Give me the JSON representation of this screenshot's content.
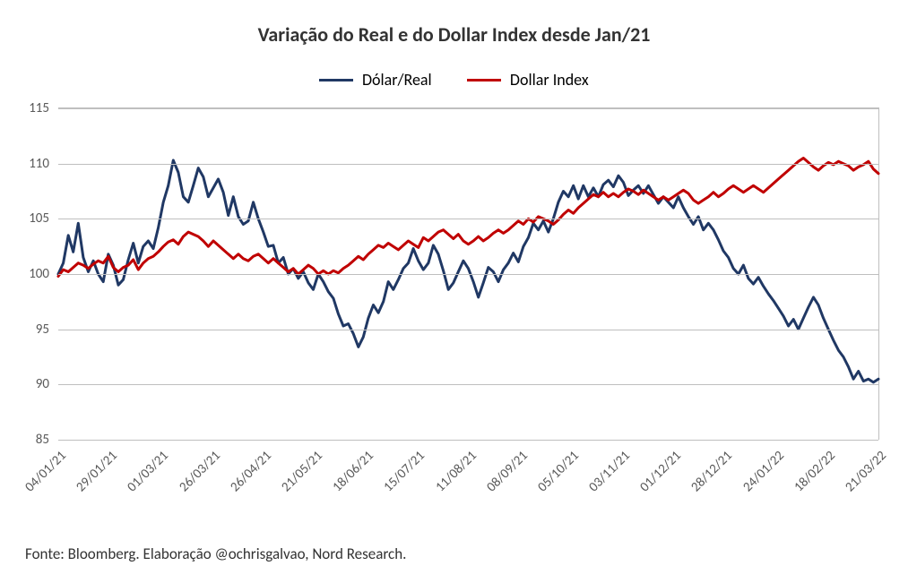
{
  "chart": {
    "type": "line",
    "title": "Variação do Real e do Dollar Index desde Jan/21",
    "title_fontsize": 22,
    "title_color": "#333333",
    "background_color": "#ffffff",
    "grid_color": "#bfbfbf",
    "plot_border_color": "#bfbfbf",
    "source": "Fonte: Bloomberg. Elaboração @ochrisgalvao, Nord Research.",
    "source_fontsize": 17,
    "ylim": [
      85,
      115
    ],
    "ytick_step": 5,
    "y_ticks": [
      85,
      90,
      95,
      100,
      105,
      110,
      115
    ],
    "tick_fontsize": 15,
    "tick_color": "#595959",
    "legend": {
      "position": "top-center",
      "fontsize": 18,
      "items": [
        {
          "label": "Dólar/Real",
          "color": "#203864"
        },
        {
          "label": "Dollar Index",
          "color": "#c00000"
        }
      ]
    },
    "line_width": 3,
    "x_labels": [
      "04/01/21",
      "29/01/21",
      "01/03/21",
      "26/03/21",
      "26/04/21",
      "21/05/21",
      "18/06/21",
      "15/07/21",
      "11/08/21",
      "08/09/21",
      "05/10/21",
      "03/11/21",
      "01/12/21",
      "28/12/21",
      "24/01/22",
      "18/02/22",
      "21/03/22"
    ],
    "series": [
      {
        "name": "Dólar/Real",
        "color": "#203864",
        "values": [
          100.0,
          101.0,
          103.5,
          102.0,
          104.6,
          101.5,
          100.2,
          101.2,
          100.0,
          99.3,
          101.8,
          100.8,
          99.0,
          99.5,
          101.3,
          102.8,
          101.0,
          102.5,
          103.0,
          102.3,
          104.2,
          106.5,
          108.0,
          110.3,
          109.2,
          107.0,
          106.5,
          108.0,
          109.6,
          108.8,
          107.0,
          107.8,
          108.6,
          107.4,
          105.3,
          107.0,
          105.2,
          104.5,
          104.8,
          106.5,
          105.0,
          103.8,
          102.5,
          102.6,
          101.0,
          101.5,
          100.0,
          100.5,
          99.6,
          100.2,
          99.2,
          98.6,
          100.0,
          99.3,
          98.4,
          97.8,
          96.4,
          95.3,
          95.5,
          94.6,
          93.4,
          94.3,
          96.0,
          97.2,
          96.5,
          97.5,
          99.3,
          98.6,
          99.5,
          100.5,
          101.0,
          102.3,
          101.2,
          100.4,
          101.0,
          102.6,
          101.8,
          100.3,
          98.6,
          99.2,
          100.2,
          101.2,
          100.5,
          99.3,
          97.9,
          99.2,
          100.6,
          100.2,
          99.3,
          100.4,
          101.0,
          101.9,
          101.1,
          102.5,
          103.3,
          104.6,
          104.0,
          104.8,
          103.8,
          105.0,
          106.5,
          107.5,
          107.0,
          108.0,
          106.8,
          108.0,
          107.0,
          107.8,
          107.0,
          108.1,
          108.5,
          107.9,
          108.9,
          108.3,
          107.1,
          107.6,
          108.0,
          107.3,
          108.0,
          107.2,
          106.4,
          107.0,
          106.5,
          106.0,
          107.0,
          106.0,
          105.2,
          104.5,
          105.2,
          104.0,
          104.6,
          104.0,
          103.1,
          102.1,
          101.5,
          100.5,
          100.0,
          100.8,
          99.6,
          99.1,
          99.7,
          98.9,
          98.2,
          97.6,
          96.9,
          96.2,
          95.3,
          95.9,
          95.0,
          96.0,
          97.0,
          97.9,
          97.2,
          96.0,
          95.0,
          94.0,
          93.1,
          92.5,
          91.6,
          90.5,
          91.2,
          90.3,
          90.5,
          90.2,
          90.5
        ]
      },
      {
        "name": "Dollar Index",
        "color": "#c00000",
        "values": [
          99.8,
          100.4,
          100.2,
          100.6,
          101.0,
          100.8,
          100.5,
          100.9,
          101.2,
          101.0,
          101.6,
          100.6,
          100.2,
          100.6,
          100.8,
          101.3,
          100.4,
          101.0,
          101.4,
          101.6,
          102.0,
          102.5,
          102.9,
          103.1,
          102.7,
          103.4,
          103.8,
          103.6,
          103.4,
          103.0,
          102.5,
          103.0,
          102.6,
          102.2,
          101.8,
          101.4,
          101.8,
          101.4,
          101.2,
          101.6,
          101.8,
          101.4,
          101.0,
          101.4,
          101.0,
          100.6,
          100.2,
          100.5,
          100.0,
          100.4,
          100.8,
          100.5,
          100.0,
          100.3,
          100.0,
          100.3,
          100.1,
          100.5,
          100.8,
          101.2,
          101.6,
          101.3,
          101.8,
          102.2,
          102.6,
          102.4,
          102.8,
          102.5,
          102.2,
          102.6,
          103.0,
          102.7,
          102.4,
          103.3,
          103.0,
          103.4,
          103.8,
          104.0,
          103.6,
          103.2,
          103.6,
          103.0,
          102.7,
          103.0,
          103.4,
          103.0,
          103.3,
          103.7,
          104.0,
          103.7,
          104.0,
          104.4,
          104.8,
          104.5,
          105.0,
          104.7,
          105.2,
          105.0,
          104.8,
          104.5,
          104.9,
          105.4,
          105.8,
          105.5,
          106.0,
          106.4,
          106.8,
          107.2,
          107.0,
          107.4,
          107.0,
          107.3,
          107.0,
          107.4,
          107.7,
          107.5,
          107.2,
          107.6,
          107.3,
          107.0,
          106.7,
          107.0,
          106.7,
          107.0,
          107.3,
          107.6,
          107.3,
          106.7,
          106.4,
          106.7,
          107.0,
          107.4,
          107.0,
          107.3,
          107.7,
          108.0,
          107.7,
          107.4,
          107.7,
          108.0,
          107.7,
          107.4,
          107.8,
          108.2,
          108.6,
          109.0,
          109.4,
          109.8,
          110.2,
          110.5,
          110.1,
          109.7,
          109.4,
          109.8,
          110.1,
          109.9,
          110.2,
          110.0,
          109.8,
          109.4,
          109.7,
          109.9,
          110.2,
          109.5,
          109.1
        ]
      }
    ]
  }
}
